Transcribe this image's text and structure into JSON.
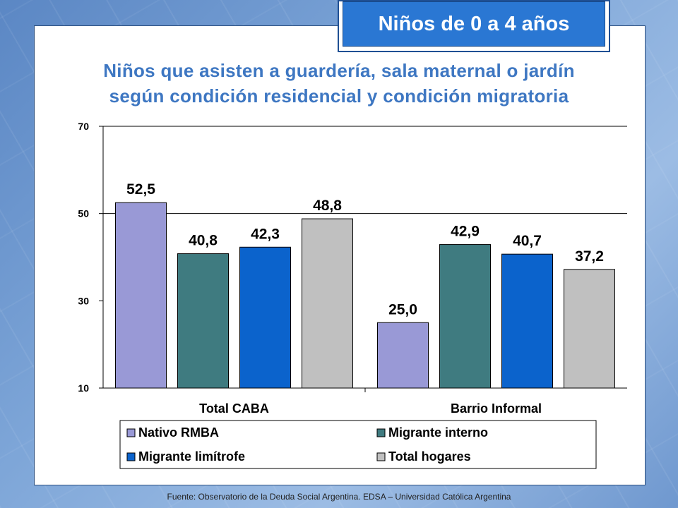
{
  "badge": {
    "text": "Niños de 0 a 4 años"
  },
  "source": "Fuente: Observatorio de la Deuda Social Argentina. EDSA – Universidad Católica Argentina",
  "chart_data": {
    "type": "bar",
    "title_lines": [
      "Niños que asisten a guardería, sala maternal o jardín",
      "según condición residencial y condición migratoria"
    ],
    "xlabel": "",
    "ylabel": "",
    "categories": [
      "Total CABA",
      "Barrio Informal"
    ],
    "series": [
      {
        "name": "Nativo RMBA",
        "values": [
          52.5,
          25.0
        ],
        "labels": [
          "52,5",
          "25,0"
        ],
        "color": "#9999d6"
      },
      {
        "name": "Migrante interno",
        "values": [
          40.8,
          42.9
        ],
        "labels": [
          "40,8",
          "42,9"
        ],
        "color": "#3f7b80"
      },
      {
        "name": "Migrante limítrofe",
        "values": [
          42.3,
          40.7
        ],
        "labels": [
          "42,3",
          "40,7"
        ],
        "color": "#0b63cc"
      },
      {
        "name": "Total hogares",
        "values": [
          48.8,
          37.2
        ],
        "labels": [
          "48,8",
          "37,2"
        ],
        "color": "#c0c0c0"
      }
    ],
    "ylim": [
      10,
      70
    ],
    "yticks": [
      "10",
      "30",
      "50",
      "70"
    ],
    "ytick_values": [
      10,
      30,
      50,
      70
    ],
    "gridlines": [
      70,
      50
    ],
    "legend": "bottom"
  }
}
